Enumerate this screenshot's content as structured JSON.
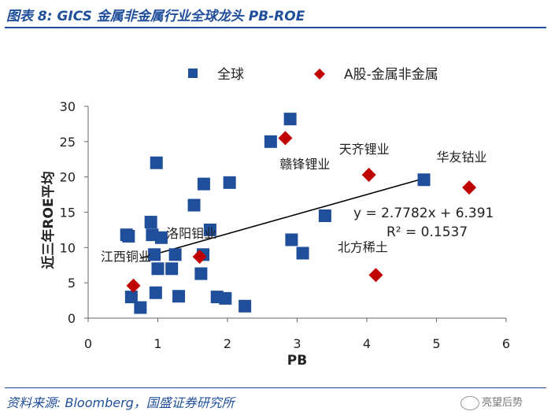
{
  "header": {
    "title": "图表 8:  GICS 金属非金属行业全球龙头 PB-ROE"
  },
  "footer": {
    "source": "资料来源:  Bloomberg，国盛证券研究所",
    "watermark": "亮望后势"
  },
  "colors": {
    "series_global": "#1f4e9a",
    "series_a_share": "#c00000",
    "title_blue": "#1f4e9a"
  },
  "chart_data": {
    "type": "scatter",
    "xlabel": "PB",
    "ylabel": "近三年ROE平均",
    "xlim": [
      0,
      6
    ],
    "ylim": [
      0,
      30
    ],
    "xticks": [
      "0",
      "1",
      "2",
      "3",
      "4",
      "5",
      "6"
    ],
    "yticks": [
      "0",
      "5",
      "10",
      "15",
      "20",
      "25",
      "30"
    ],
    "legend_position": "top",
    "series": [
      {
        "name": "全球",
        "marker": "square",
        "color": "#1f4e9a",
        "points": [
          [
            0.55,
            11.8
          ],
          [
            0.58,
            11.6
          ],
          [
            0.62,
            3.0
          ],
          [
            0.75,
            1.5
          ],
          [
            0.9,
            13.6
          ],
          [
            0.92,
            11.8
          ],
          [
            0.95,
            9.0
          ],
          [
            0.97,
            3.6
          ],
          [
            0.98,
            22.0
          ],
          [
            1.0,
            7.0
          ],
          [
            1.05,
            11.4
          ],
          [
            1.2,
            7.0
          ],
          [
            1.25,
            9.0
          ],
          [
            1.3,
            3.1
          ],
          [
            1.52,
            16.0
          ],
          [
            1.62,
            6.3
          ],
          [
            1.65,
            9.0
          ],
          [
            1.66,
            19.0
          ],
          [
            1.75,
            12.5
          ],
          [
            1.85,
            3.0
          ],
          [
            1.97,
            2.8
          ],
          [
            2.03,
            19.2
          ],
          [
            2.25,
            1.7
          ],
          [
            2.62,
            25.0
          ],
          [
            2.9,
            28.2
          ],
          [
            2.92,
            11.1
          ],
          [
            3.08,
            9.2
          ],
          [
            3.4,
            14.5
          ],
          [
            4.82,
            19.6
          ]
        ]
      },
      {
        "name": "A股-金属非金属",
        "marker": "diamond",
        "color": "#c00000",
        "points": [
          [
            0.65,
            4.6
          ],
          [
            1.6,
            8.7
          ],
          [
            2.83,
            25.5
          ],
          [
            4.03,
            20.3
          ],
          [
            4.13,
            6.1
          ],
          [
            5.47,
            18.5
          ]
        ]
      }
    ],
    "trendline": {
      "equation": "y = 2.7782x + 6.391",
      "r2": "R² = 0.1537",
      "slope": 2.7782,
      "intercept": 6.391,
      "x_range": [
        0.75,
        4.82
      ]
    },
    "annotations": [
      {
        "text": "赣锋锂业",
        "x": 2.75,
        "y": 21.2
      },
      {
        "text": "天齐锂业",
        "x": 3.6,
        "y": 23.3
      },
      {
        "text": "华友钴业",
        "x": 5.0,
        "y": 22.2
      },
      {
        "text": "洛阳钼业",
        "x": 1.12,
        "y": 11.4
      },
      {
        "text": "江西铜业",
        "x": 0.18,
        "y": 8.1
      },
      {
        "text": "北方稀土",
        "x": 3.58,
        "y": 9.4
      }
    ]
  }
}
